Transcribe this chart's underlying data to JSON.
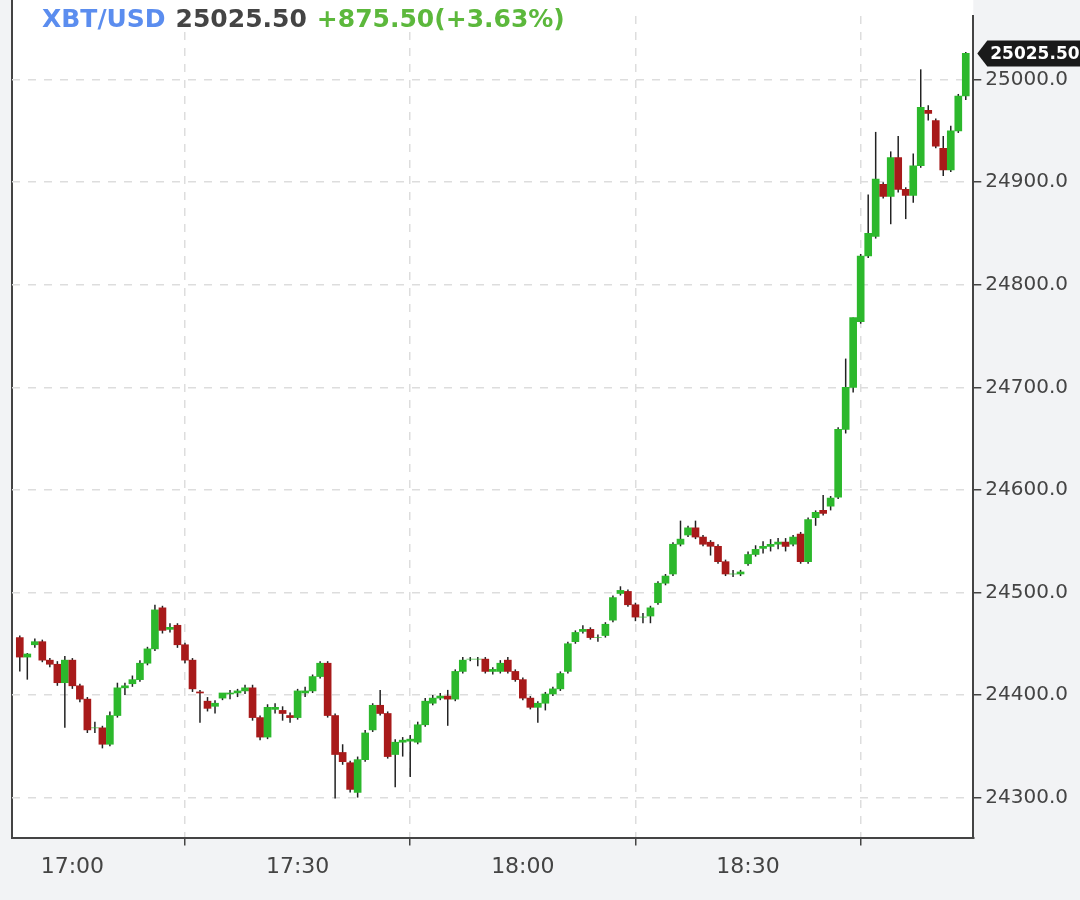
{
  "chart_data": {
    "type": "candlestick",
    "title": "XBT/USD",
    "annotations": [
      "25025.50",
      "+875.50(+3.63%)",
      "25025.50"
    ],
    "x": [
      16.8833,
      16.9,
      16.9167,
      16.9333,
      16.95,
      16.9667,
      16.9833,
      17,
      17.0167,
      17.0333,
      17.05,
      17.0667,
      17.0833,
      17.1,
      17.1167,
      17.1333,
      17.15,
      17.1667,
      17.1833,
      17.2,
      17.2167,
      17.2333,
      17.25,
      17.2667,
      17.2833,
      17.3,
      17.3167,
      17.3333,
      17.35,
      17.3667,
      17.3833,
      17.4,
      17.4167,
      17.4333,
      17.45,
      17.4667,
      17.4833,
      17.5,
      17.5167,
      17.5333,
      17.55,
      17.5667,
      17.5833,
      17.6,
      17.6167,
      17.6333,
      17.65,
      17.6667,
      17.6833,
      17.7,
      17.7167,
      17.7333,
      17.75,
      17.7667,
      17.7833,
      17.8,
      17.8167,
      17.8333,
      17.85,
      17.8667,
      17.8833,
      17.9,
      17.9167,
      17.9333,
      17.95,
      17.9667,
      17.9833,
      18,
      18.0167,
      18.0333,
      18.05,
      18.0667,
      18.0833,
      18.1,
      18.1167,
      18.1333,
      18.15,
      18.1667,
      18.1833,
      18.2,
      18.2167,
      18.2333,
      18.25,
      18.2667,
      18.2833,
      18.3,
      18.3167,
      18.3333,
      18.35,
      18.3667,
      18.3833,
      18.4,
      18.4167,
      18.4333,
      18.45,
      18.4667,
      18.4833,
      18.5,
      18.5167,
      18.5333,
      18.55,
      18.5667,
      18.5833,
      18.6,
      18.6167,
      18.6333,
      18.65,
      18.6667,
      18.6833,
      18.7,
      18.7167,
      18.7333,
      18.75,
      18.7667,
      18.7833,
      18.8,
      18.8167,
      18.8333,
      18.85,
      18.8667,
      18.8833,
      18.9,
      18.9167,
      18.9333,
      18.95,
      18.9667,
      18.9833
    ],
    "ohlc": [
      [
        24456,
        24458,
        24423,
        24437
      ],
      [
        24437,
        24441,
        24415,
        24440
      ],
      [
        24449,
        24455,
        24446,
        24452
      ],
      [
        24452,
        24454,
        24432,
        24434
      ],
      [
        24434,
        24436,
        24427,
        24430
      ],
      [
        24430,
        24433,
        24409,
        24412
      ],
      [
        24412,
        24438,
        24368,
        24434
      ],
      [
        24434,
        24436,
        24406,
        24409
      ],
      [
        24409,
        24411,
        24393,
        24396
      ],
      [
        24396,
        24398,
        24363,
        24366
      ],
      [
        24368,
        24374,
        24363,
        24368
      ],
      [
        24368,
        24370,
        24348,
        24352
      ],
      [
        24352,
        24384,
        24350,
        24380
      ],
      [
        24380,
        24412,
        24378,
        24407
      ],
      [
        24407,
        24412,
        24400,
        24409
      ],
      [
        24411,
        24419,
        24408,
        24415
      ],
      [
        24415,
        24434,
        24413,
        24431
      ],
      [
        24431,
        24447,
        24429,
        24445
      ],
      [
        24445,
        24488,
        24443,
        24483
      ],
      [
        24485,
        24487,
        24460,
        24463
      ],
      [
        24464,
        24470,
        24461,
        24466
      ],
      [
        24468,
        24470,
        24446,
        24449
      ],
      [
        24449,
        24451,
        24431,
        24434
      ],
      [
        24434,
        24436,
        24403,
        24406
      ],
      [
        24403,
        24405,
        24373,
        24402
      ],
      [
        24394,
        24398,
        24384,
        24387
      ],
      [
        24389,
        24395,
        24382,
        24392
      ],
      [
        24397,
        24402,
        24395,
        24402
      ],
      [
        24401,
        24405,
        24396,
        24402
      ],
      [
        24402,
        24406,
        24398,
        24404
      ],
      [
        24404,
        24410,
        24401,
        24407
      ],
      [
        24407,
        24410,
        24375,
        24378
      ],
      [
        24378,
        24380,
        24356,
        24359
      ],
      [
        24359,
        24391,
        24357,
        24388
      ],
      [
        24386,
        24392,
        24382,
        24388
      ],
      [
        24385,
        24389,
        24375,
        24382
      ],
      [
        24380,
        24383,
        24373,
        24378
      ],
      [
        24378,
        24406,
        24376,
        24404
      ],
      [
        24402,
        24408,
        24398,
        24404
      ],
      [
        24404,
        24420,
        24402,
        24418
      ],
      [
        24418,
        24433,
        24416,
        24431
      ],
      [
        24431,
        24433,
        24378,
        24380
      ],
      [
        24380,
        24382,
        24299,
        24342
      ],
      [
        24344,
        24352,
        24332,
        24335
      ],
      [
        24334,
        24336,
        24305,
        24308
      ],
      [
        24305,
        24340,
        24300,
        24337
      ],
      [
        24337,
        24366,
        24335,
        24363
      ],
      [
        24366,
        24392,
        24364,
        24390
      ],
      [
        24390,
        24405,
        24380,
        24382
      ],
      [
        24382,
        24384,
        24338,
        24340
      ],
      [
        24342,
        24357,
        24310,
        24354
      ],
      [
        24354,
        24359,
        24340,
        24356
      ],
      [
        24355,
        24361,
        24320,
        24357
      ],
      [
        24354,
        24374,
        24352,
        24371
      ],
      [
        24371,
        24397,
        24369,
        24394
      ],
      [
        24392,
        24400,
        24390,
        24397
      ],
      [
        24397,
        24402,
        24395,
        24399
      ],
      [
        24399,
        24405,
        24370,
        24396
      ],
      [
        24396,
        24425,
        24394,
        24423
      ],
      [
        24423,
        24437,
        24421,
        24434
      ],
      [
        24435,
        24437,
        24433,
        24435
      ],
      [
        24435,
        24437,
        24428,
        24435
      ],
      [
        24435,
        24437,
        24421,
        24423
      ],
      [
        24423,
        24427,
        24420,
        24425
      ],
      [
        24423,
        24434,
        24421,
        24431
      ],
      [
        24434,
        24437,
        24421,
        24423
      ],
      [
        24423,
        24425,
        24413,
        24415
      ],
      [
        24415,
        24417,
        24395,
        24397
      ],
      [
        24397,
        24399,
        24386,
        24388
      ],
      [
        24388,
        24394,
        24373,
        24392
      ],
      [
        24392,
        24403,
        24385,
        24401
      ],
      [
        24401,
        24408,
        24399,
        24406
      ],
      [
        24406,
        24423,
        24404,
        24421
      ],
      [
        24423,
        24452,
        24421,
        24450
      ],
      [
        24452,
        24463,
        24450,
        24461
      ],
      [
        24462,
        24468,
        24460,
        24464
      ],
      [
        24464,
        24466,
        24454,
        24456
      ],
      [
        24456,
        24459,
        24452,
        24456
      ],
      [
        24458,
        24471,
        24456,
        24469
      ],
      [
        24473,
        24497,
        24471,
        24495
      ],
      [
        24499,
        24506,
        24497,
        24502
      ],
      [
        24501,
        24503,
        24486,
        24488
      ],
      [
        24488,
        24490,
        24472,
        24476
      ],
      [
        24476,
        24480,
        24470,
        24476
      ],
      [
        24477,
        24487,
        24470,
        24485
      ],
      [
        24490,
        24511,
        24488,
        24509
      ],
      [
        24509,
        24518,
        24507,
        24516
      ],
      [
        24518,
        24549,
        24516,
        24547
      ],
      [
        24547,
        24570,
        24545,
        24552
      ],
      [
        24556,
        24565,
        24554,
        24563
      ],
      [
        24563,
        24570,
        24552,
        24554
      ],
      [
        24554,
        24556,
        24545,
        24547
      ],
      [
        24549,
        24551,
        24536,
        24545
      ],
      [
        24545,
        24547,
        24528,
        24530
      ],
      [
        24530,
        24532,
        24516,
        24518
      ],
      [
        24518,
        24522,
        24515,
        24518
      ],
      [
        24518,
        24522,
        24516,
        24520
      ],
      [
        24528,
        24540,
        24526,
        24537
      ],
      [
        24537,
        24546,
        24535,
        24542
      ],
      [
        24543,
        24550,
        24538,
        24545
      ],
      [
        24545,
        24552,
        24540,
        24547
      ],
      [
        24547,
        24553,
        24542,
        24549
      ],
      [
        24549,
        24553,
        24540,
        24545
      ],
      [
        24547,
        24556,
        24545,
        24554
      ],
      [
        24557,
        24559,
        24528,
        24530
      ],
      [
        24530,
        24573,
        24528,
        24571
      ],
      [
        24573,
        24580,
        24565,
        24578
      ],
      [
        24580,
        24595,
        24575,
        24577
      ],
      [
        24584,
        24594,
        24580,
        24592
      ],
      [
        24593,
        24661,
        24591,
        24659
      ],
      [
        24659,
        24728,
        24655,
        24700
      ],
      [
        24700,
        24768,
        24695,
        24768
      ],
      [
        24764,
        24830,
        24762,
        24828
      ],
      [
        24828,
        24888,
        24826,
        24850
      ],
      [
        24847,
        24949,
        24845,
        24903
      ],
      [
        24898,
        24900,
        24884,
        24886
      ],
      [
        24886,
        24930,
        24859,
        24924
      ],
      [
        24924,
        24945,
        24890,
        24893
      ],
      [
        24893,
        24895,
        24864,
        24887
      ],
      [
        24887,
        24928,
        24880,
        24916
      ],
      [
        24916,
        25010,
        24914,
        24973
      ],
      [
        24970,
        24975,
        24960,
        24967
      ],
      [
        24960,
        24962,
        24933,
        24935
      ],
      [
        24933,
        24945,
        24906,
        24912
      ],
      [
        24912,
        24955,
        24910,
        24950
      ],
      [
        24950,
        24986,
        24948,
        24984
      ],
      [
        24984,
        25027,
        24980,
        25025.5
      ]
    ],
    "xlim": [
      16.866,
      19.0
    ],
    "xticks": [
      {
        "value": 17,
        "label": "17:00"
      },
      {
        "value": 17.5,
        "label": "17:30"
      },
      {
        "value": 18,
        "label": "18:00"
      },
      {
        "value": 18.5,
        "label": "18:30"
      }
    ],
    "ylim": [
      24261,
      25062
    ],
    "yticks": [
      {
        "value": 24300,
        "label": "24300.0"
      },
      {
        "value": 24400,
        "label": "24400.0"
      },
      {
        "value": 24500,
        "label": "24500.0"
      },
      {
        "value": 24600,
        "label": "24600.0"
      },
      {
        "value": 24700,
        "label": "24700.0"
      },
      {
        "value": 24800,
        "label": "24800.0"
      },
      {
        "value": 24900,
        "label": "24900.0"
      },
      {
        "value": 25000,
        "label": "25000.0"
      }
    ],
    "grid": true,
    "legend": false
  }
}
